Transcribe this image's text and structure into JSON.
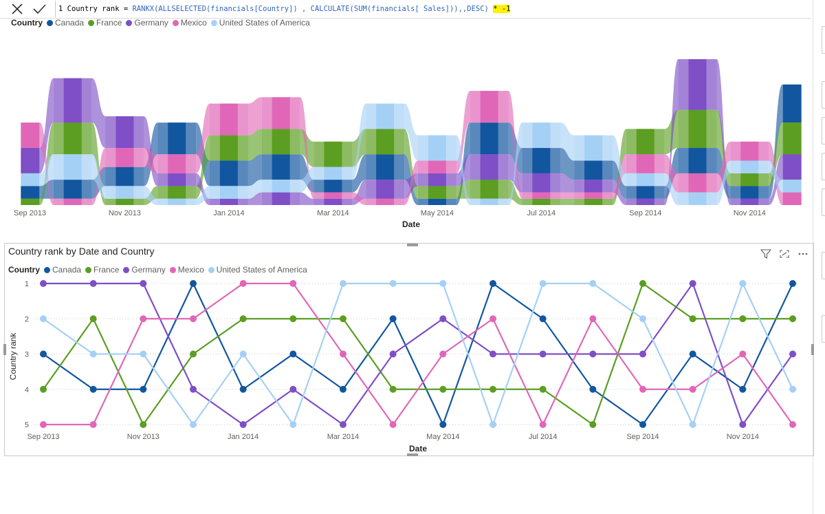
{
  "formula_bar": {
    "cancel_icon": "close-icon",
    "commit_icon": "check-icon",
    "line_number": "1",
    "name_part": "Country rank = ",
    "fn_part": "RANKX(ALLSELECTED(financials[Country]) , CALCULATE(SUM(financials[ Sales])),,DESC)",
    "space": " ",
    "highlighted_part": "* -1"
  },
  "colors": {
    "Canada": "#12569f",
    "France": "#5b9e21",
    "Germany": "#7e4fc6",
    "Mexico": "#e067b7",
    "United States of America": "#a5d0f5"
  },
  "top_visual": {
    "legend_title": "Country",
    "legend": [
      "Canada",
      "France",
      "Germany",
      "Mexico",
      "United States of America"
    ],
    "x_axis_title": "Date",
    "x_ticks": [
      "Sep 2013",
      "Nov 2013",
      "Jan 2014",
      "Mar 2014",
      "May 2014",
      "Jul 2014",
      "Sep 2014",
      "Nov 2014"
    ]
  },
  "bottom_visual": {
    "title": "Country rank by Date and Country",
    "legend_title": "Country",
    "legend": [
      "Canada",
      "France",
      "Germany",
      "Mexico",
      "United States of America"
    ],
    "header_icons": [
      "filter-icon",
      "focus-mode-icon",
      "more-options-icon"
    ]
  },
  "chart_data": [
    {
      "type": "area",
      "subtype": "ribbon",
      "title": "",
      "xlabel": "Date",
      "ylabel": "",
      "categories": [
        "Sep 2013",
        "Oct 2013",
        "Nov 2013",
        "Dec 2013",
        "Jan 2014",
        "Feb 2014",
        "Mar 2014",
        "Apr 2014",
        "May 2014",
        "Jun 2014",
        "Jul 2014",
        "Aug 2014",
        "Sep 2014",
        "Oct 2014",
        "Nov 2014",
        "Dec 2014"
      ],
      "x_ticks": [
        "Sep 2013",
        "Nov 2013",
        "Jan 2014",
        "Mar 2014",
        "May 2014",
        "Jul 2014",
        "Sep 2014",
        "Nov 2014"
      ],
      "series": [
        {
          "name": "Canada",
          "values": [
            2,
            3,
            3,
            5,
            4,
            4,
            2,
            4,
            1,
            5,
            4,
            3,
            2,
            4,
            2,
            6
          ]
        },
        {
          "name": "France",
          "values": [
            1,
            5,
            1,
            2,
            4,
            4,
            4,
            4,
            2,
            3,
            1,
            1,
            4,
            6,
            2,
            5
          ]
        },
        {
          "name": "Germany",
          "values": [
            4,
            7,
            5,
            2,
            1,
            2,
            1,
            3,
            2,
            4,
            3,
            2,
            1,
            8,
            1,
            4
          ]
        },
        {
          "name": "Mexico",
          "values": [
            4,
            1,
            3,
            3,
            5,
            5,
            1,
            1,
            2,
            5,
            1,
            1,
            3,
            3,
            3,
            2
          ]
        },
        {
          "name": "United States of America",
          "values": [
            2,
            4,
            2,
            1,
            2,
            2,
            2,
            4,
            4,
            1,
            4,
            4,
            2,
            2,
            2,
            2
          ]
        }
      ]
    },
    {
      "type": "line",
      "title": "Country rank by Date and Country",
      "xlabel": "Date",
      "ylabel": "Country rank",
      "ylim": [
        1,
        5
      ],
      "y_inverted": true,
      "y_ticks": [
        "1",
        "2",
        "3",
        "4",
        "5"
      ],
      "x_ticks": [
        "Sep 2013",
        "Nov 2013",
        "Jan 2014",
        "Mar 2014",
        "May 2014",
        "Jul 2014",
        "Sep 2014",
        "Nov 2014"
      ],
      "categories": [
        "Sep 2013",
        "Oct 2013",
        "Nov 2013",
        "Dec 2013",
        "Jan 2014",
        "Feb 2014",
        "Mar 2014",
        "Apr 2014",
        "May 2014",
        "Jun 2014",
        "Jul 2014",
        "Aug 2014",
        "Sep 2014",
        "Oct 2014",
        "Nov 2014",
        "Dec 2014"
      ],
      "series": [
        {
          "name": "Canada",
          "values": [
            3,
            4,
            4,
            1,
            4,
            3,
            4,
            2,
            5,
            1,
            2,
            4,
            5,
            3,
            4,
            1
          ]
        },
        {
          "name": "France",
          "values": [
            4,
            2,
            5,
            3,
            2,
            2,
            2,
            4,
            4,
            4,
            4,
            5,
            1,
            2,
            2,
            2
          ]
        },
        {
          "name": "Germany",
          "values": [
            1,
            1,
            1,
            4,
            5,
            4,
            5,
            3,
            2,
            3,
            3,
            3,
            3,
            1,
            5,
            3
          ]
        },
        {
          "name": "Mexico",
          "values": [
            5,
            5,
            2,
            2,
            1,
            1,
            3,
            5,
            3,
            2,
            5,
            2,
            4,
            4,
            3,
            5
          ]
        },
        {
          "name": "United States of America",
          "values": [
            2,
            3,
            3,
            5,
            3,
            5,
            1,
            1,
            1,
            5,
            1,
            1,
            2,
            5,
            1,
            4
          ]
        }
      ]
    }
  ]
}
